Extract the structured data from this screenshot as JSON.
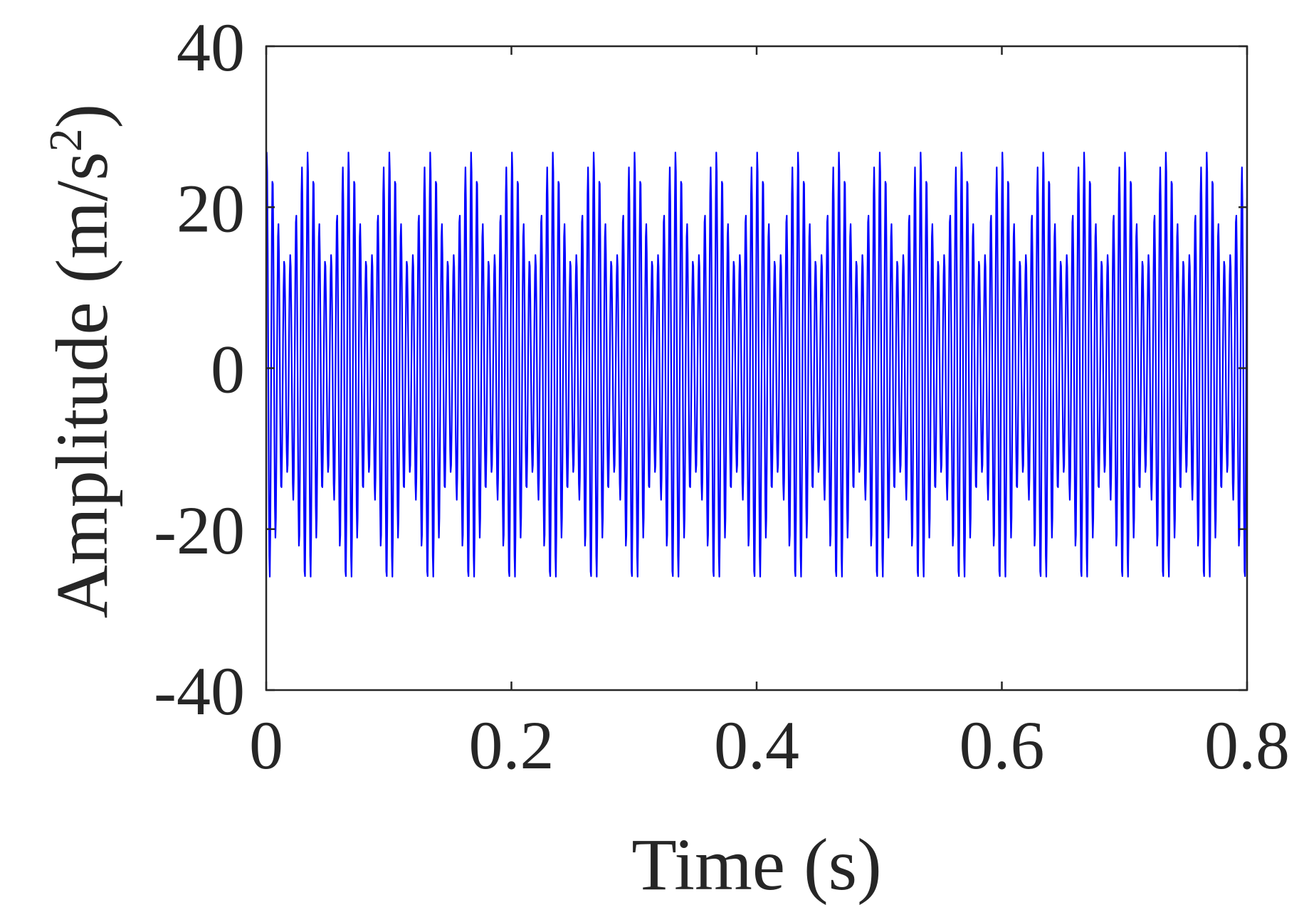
{
  "chart_data": {
    "type": "line",
    "title": "",
    "xlabel": "Time (s)",
    "ylabel_main": "Amplitude (m/s",
    "ylabel_sup": "2",
    "ylabel_end": ")",
    "xlim": [
      0,
      0.8
    ],
    "ylim": [
      -40,
      40
    ],
    "xticks": [
      0,
      0.2,
      0.4,
      0.6,
      0.8
    ],
    "xtick_labels": [
      "0",
      "0.2",
      "0.4",
      "0.6",
      "0.8"
    ],
    "yticks": [
      -40,
      -20,
      0,
      20,
      40
    ],
    "ytick_labels": [
      "-40",
      "-20",
      "0",
      "20",
      "40"
    ],
    "grid": false,
    "legend": "none",
    "series": [
      {
        "color": "#0000ff",
        "signal": {
          "duration": 0.8,
          "sample_rate": 2400,
          "components": [
            {
              "frequency": 210,
              "amplitude": 20
            },
            {
              "frequency": 240,
              "amplitude": 4.5
            },
            {
              "frequency": 180,
              "amplitude": 2.5
            }
          ]
        }
      }
    ],
    "colors": {
      "line": "#0000ff",
      "axes": "#262626",
      "background": "#ffffff"
    }
  }
}
